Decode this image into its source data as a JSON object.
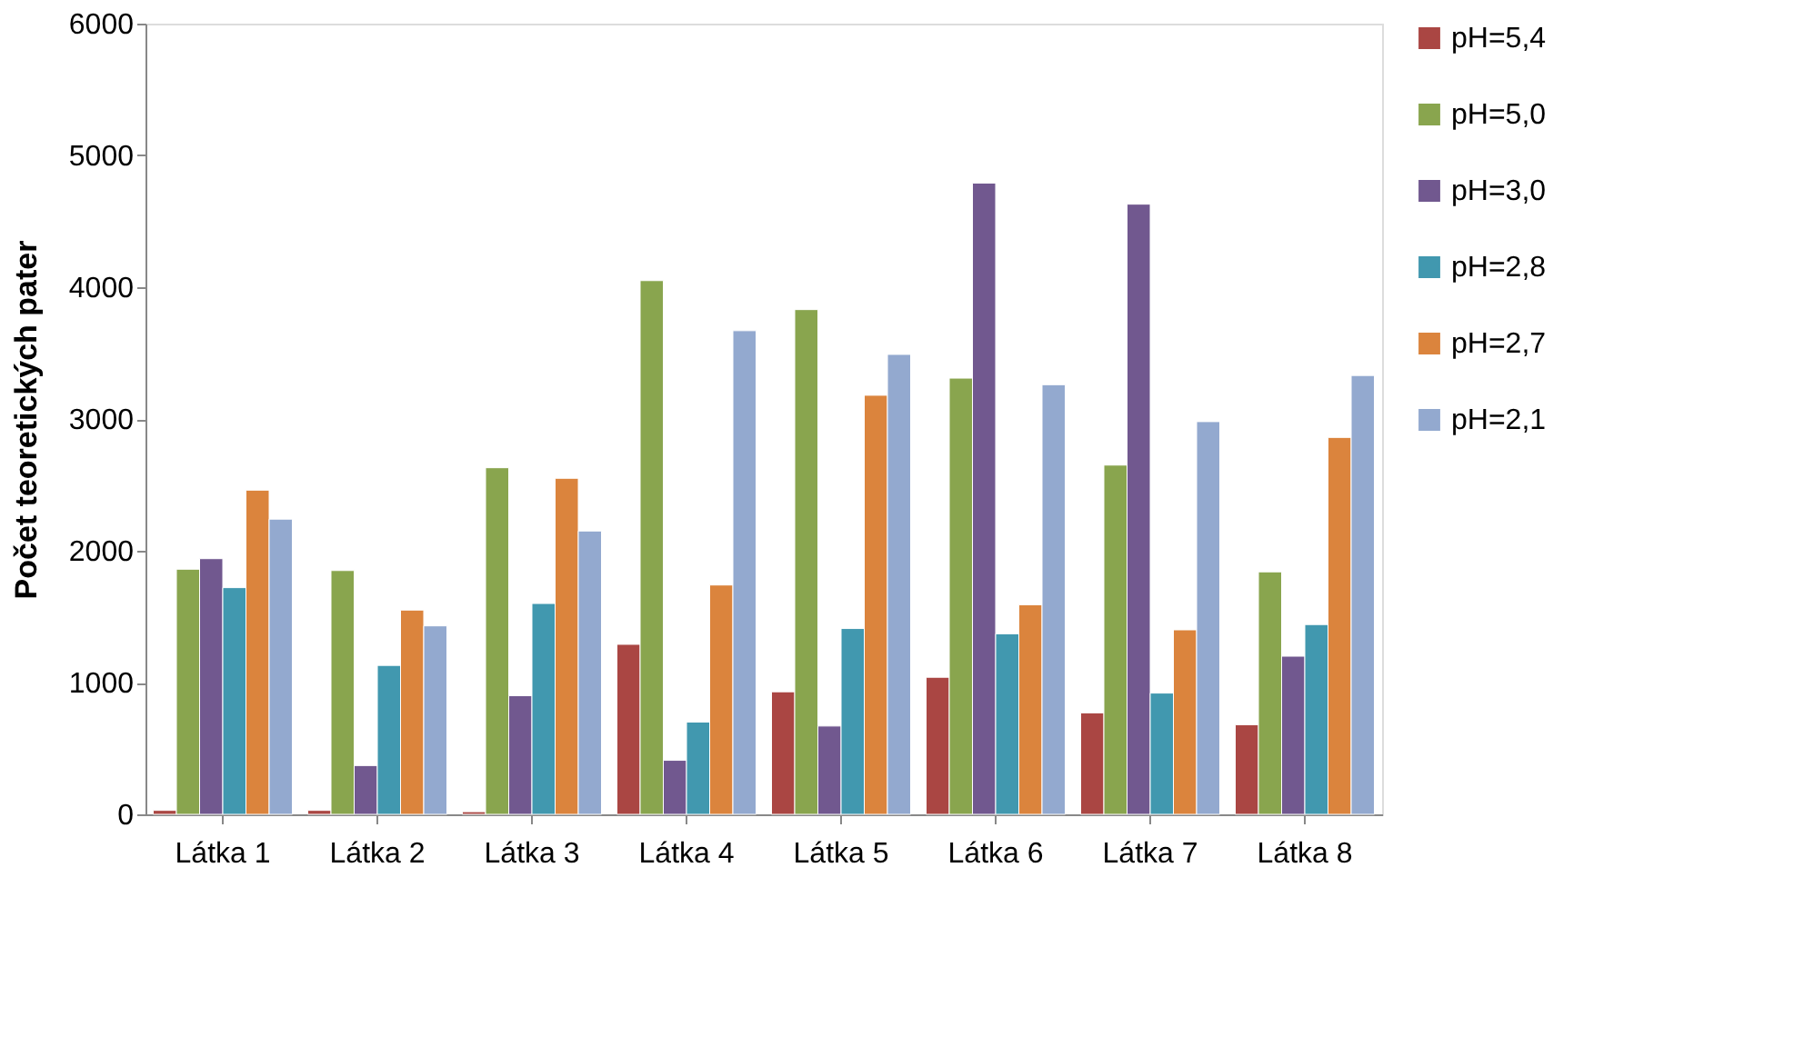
{
  "chart_data": {
    "type": "bar",
    "ylabel": "Počet teoretických pater",
    "categories": [
      "Látka 1",
      "Látka 2",
      "Látka 3",
      "Látka 4",
      "Látka 5",
      "Látka 6",
      "Látka 7",
      "Látka 8"
    ],
    "series": [
      {
        "name": "pH=5,4",
        "color": "#aa4643",
        "values": [
          30,
          30,
          20,
          1290,
          930,
          1040,
          770,
          680
        ]
      },
      {
        "name": "pH=5,0",
        "color": "#89a54e",
        "values": [
          1860,
          1850,
          2630,
          4050,
          3830,
          3310,
          2650,
          1840
        ]
      },
      {
        "name": "pH=3,0",
        "color": "#71588f",
        "values": [
          1940,
          370,
          900,
          410,
          670,
          4790,
          4630,
          1200
        ]
      },
      {
        "name": "pH=2,8",
        "color": "#4198af",
        "values": [
          1720,
          1130,
          1600,
          700,
          1410,
          1370,
          920,
          1440
        ]
      },
      {
        "name": "pH=2,7",
        "color": "#db843d",
        "values": [
          2460,
          1550,
          2550,
          1740,
          3180,
          1590,
          1400,
          2860
        ]
      },
      {
        "name": "pH=2,1",
        "color": "#93a9cf",
        "values": [
          2240,
          1430,
          2150,
          3670,
          3490,
          3260,
          2980,
          3330
        ]
      }
    ],
    "ylim": [
      0,
      6000
    ],
    "yticks": [
      0,
      1000,
      2000,
      3000,
      4000,
      5000,
      6000
    ],
    "grid": false,
    "legend": "right"
  }
}
